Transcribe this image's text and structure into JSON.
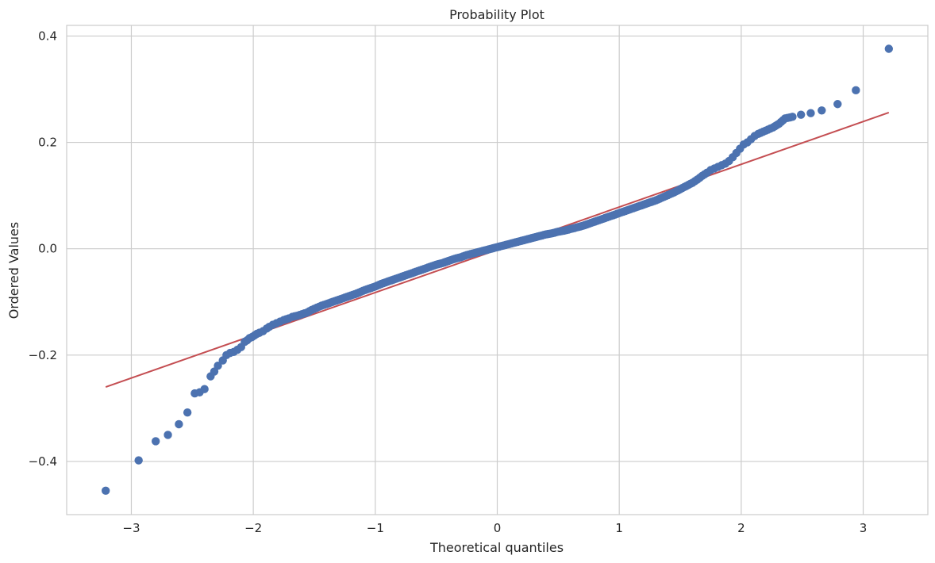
{
  "chart_data": {
    "type": "scatter",
    "title": "Probability Plot",
    "xlabel": "Theoretical quantiles",
    "ylabel": "Ordered Values",
    "xlim": [
      -3.53,
      3.53
    ],
    "ylim": [
      -0.5,
      0.42
    ],
    "xticks": [
      -3,
      -2,
      -1,
      0,
      1,
      2,
      3
    ],
    "xtick_labels": [
      "−3",
      "−2",
      "−1",
      "0",
      "1",
      "2",
      "3"
    ],
    "yticks": [
      -0.4,
      -0.2,
      0.0,
      0.2,
      0.4
    ],
    "ytick_labels": [
      "−0.4",
      "−0.2",
      "0.0",
      "0.2",
      "0.4"
    ],
    "grid": true,
    "colors": {
      "points": "#4c72b0",
      "fit_line": "#c44e52",
      "grid": "#cccccc",
      "spine": "#cccccc"
    },
    "fit_line": {
      "x": [
        -3.21,
        3.21
      ],
      "y": [
        -0.26,
        0.256
      ]
    },
    "series": [
      {
        "x": [
          -3.21,
          -2.94,
          -2.8,
          -2.7,
          -2.61,
          -2.54,
          -2.48,
          -2.44,
          -2.4,
          -2.35,
          -2.32,
          -2.29,
          -2.25,
          -2.22,
          -2.19,
          -2.16,
          -2.13,
          -2.1,
          -2.07,
          -2.05,
          -2.03,
          -2.01,
          -1.99,
          -1.97,
          -1.95,
          -1.92,
          -1.89,
          -1.87,
          -1.84,
          -1.81,
          -1.78,
          -1.75,
          -1.71,
          -1.68,
          -1.64,
          -1.6,
          -1.56,
          -1.52,
          -1.48,
          -1.44,
          -1.4,
          -1.35,
          -1.3,
          -1.25,
          -1.2,
          -1.15,
          -1.1,
          -1.05,
          -1.0,
          -0.95,
          -0.9,
          -0.85,
          -0.8,
          -0.75,
          -0.7,
          -0.65,
          -0.6,
          -0.55,
          -0.5,
          -0.45,
          -0.4,
          -0.35,
          -0.3,
          -0.25,
          -0.2,
          -0.15,
          -0.1,
          -0.05,
          0.0,
          0.05,
          0.1,
          0.15,
          0.2,
          0.25,
          0.3,
          0.35,
          0.4,
          0.45,
          0.5,
          0.55,
          0.6,
          0.65,
          0.7,
          0.75,
          0.8,
          0.85,
          0.9,
          0.95,
          1.0,
          1.05,
          1.1,
          1.15,
          1.2,
          1.25,
          1.3,
          1.35,
          1.4,
          1.45,
          1.5,
          1.55,
          1.6,
          1.64,
          1.68,
          1.72,
          1.75,
          1.78,
          1.81,
          1.84,
          1.87,
          1.9,
          1.93,
          1.96,
          1.99,
          2.02,
          2.05,
          2.08,
          2.11,
          2.14,
          2.18,
          2.22,
          2.26,
          2.31,
          2.36,
          2.42,
          2.49,
          2.57,
          2.66,
          2.79,
          2.94,
          3.21
        ],
        "y": [
          -0.455,
          -0.398,
          -0.362,
          -0.35,
          -0.33,
          -0.308,
          -0.272,
          -0.27,
          -0.264,
          -0.24,
          -0.231,
          -0.22,
          -0.21,
          -0.2,
          -0.196,
          -0.194,
          -0.19,
          -0.185,
          -0.175,
          -0.172,
          -0.168,
          -0.166,
          -0.163,
          -0.16,
          -0.158,
          -0.155,
          -0.15,
          -0.147,
          -0.143,
          -0.14,
          -0.137,
          -0.134,
          -0.131,
          -0.128,
          -0.126,
          -0.123,
          -0.12,
          -0.115,
          -0.111,
          -0.107,
          -0.104,
          -0.1,
          -0.096,
          -0.092,
          -0.088,
          -0.084,
          -0.079,
          -0.075,
          -0.071,
          -0.066,
          -0.062,
          -0.058,
          -0.054,
          -0.05,
          -0.046,
          -0.042,
          -0.038,
          -0.034,
          -0.03,
          -0.027,
          -0.023,
          -0.019,
          -0.016,
          -0.012,
          -0.009,
          -0.006,
          -0.003,
          0.0,
          0.003,
          0.006,
          0.009,
          0.012,
          0.015,
          0.018,
          0.021,
          0.024,
          0.027,
          0.029,
          0.032,
          0.034,
          0.037,
          0.04,
          0.043,
          0.047,
          0.051,
          0.055,
          0.059,
          0.063,
          0.067,
          0.071,
          0.075,
          0.079,
          0.083,
          0.087,
          0.091,
          0.096,
          0.101,
          0.106,
          0.112,
          0.118,
          0.124,
          0.13,
          0.137,
          0.143,
          0.148,
          0.151,
          0.154,
          0.157,
          0.16,
          0.165,
          0.172,
          0.18,
          0.188,
          0.196,
          0.2,
          0.206,
          0.212,
          0.216,
          0.22,
          0.224,
          0.228,
          0.235,
          0.245,
          0.248,
          0.252,
          0.255,
          0.26,
          0.272,
          0.298,
          0.376
        ]
      }
    ]
  }
}
